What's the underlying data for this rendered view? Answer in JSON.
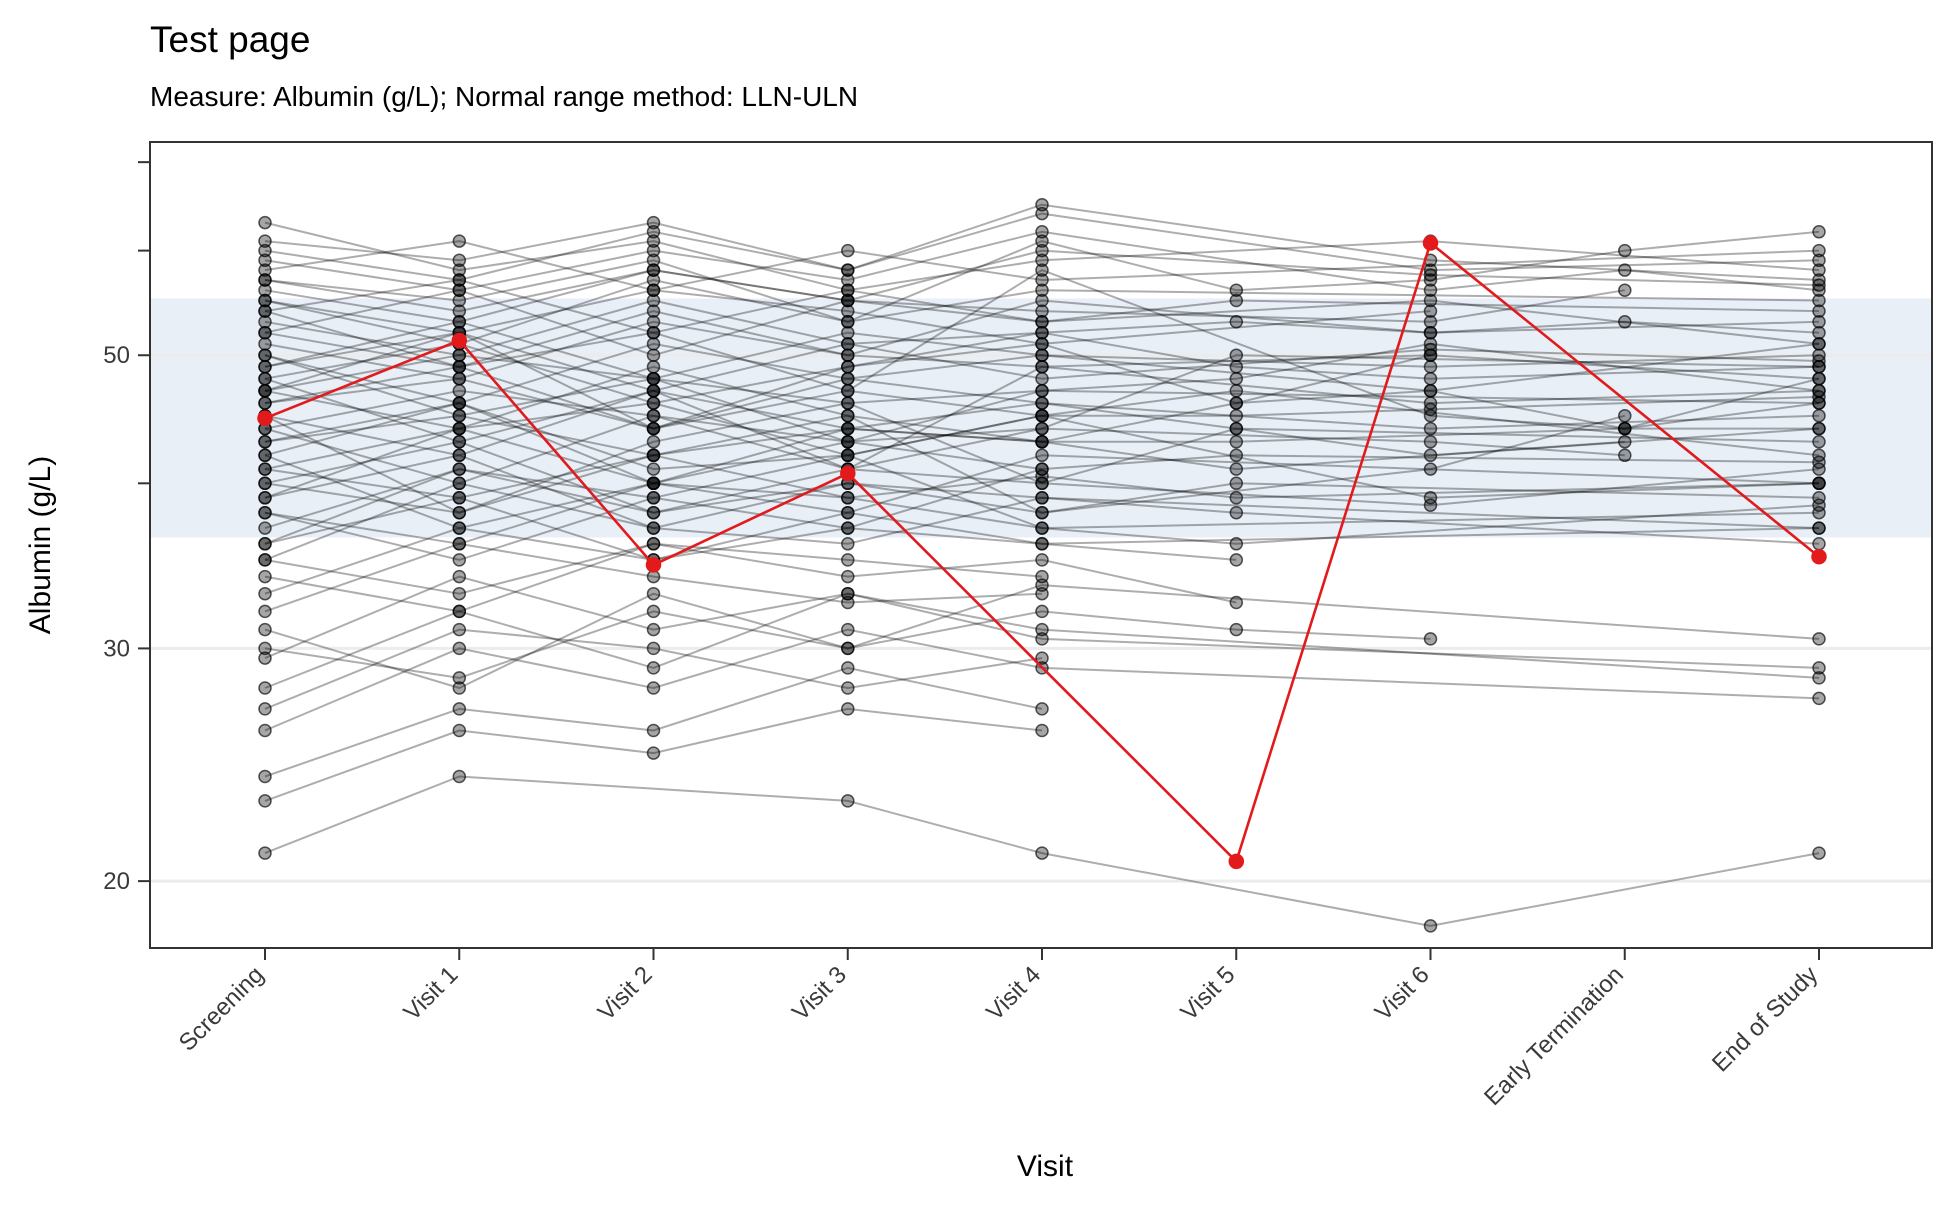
{
  "chart_data": {
    "type": "line",
    "title": "Test page",
    "subtitle": "Measure: Albumin (g/L); Normal range method: LLN-ULN",
    "xlabel": "Visit",
    "ylabel": "Albumin (g/L)",
    "categories": [
      "Screening",
      "Visit 1",
      "Visit 2",
      "Visit 3",
      "Visit 4",
      "Visit 5",
      "Visit 6",
      "Early Termination",
      "End of Study"
    ],
    "y_scale": "log",
    "ylim": [
      17.8,
      72.5
    ],
    "y_ticks": [
      20,
      30,
      50
    ],
    "normal_range": [
      36.4,
      55.2
    ],
    "grid": true,
    "colors": {
      "normal_range_band": "#e8eff7",
      "gridline": "#ececec",
      "participant_lines": "#000000",
      "highlight": "#e31a1c"
    },
    "highlighted_participant": {
      "values": [
        44.8,
        51.3,
        34.7,
        40.7,
        null,
        20.7,
        60.8,
        null,
        35.2
      ]
    },
    "participants": [
      {
        "values": [
          50.0,
          45.0,
          48.0,
          43.0,
          47.0,
          null,
          null,
          null,
          46.0
        ]
      },
      {
        "values": [
          47.0,
          52.0,
          44.0,
          49.0,
          51.0,
          46.0,
          50.0,
          null,
          null
        ]
      },
      {
        "values": [
          54.0,
          49.0,
          52.0,
          47.0,
          58.0,
          null,
          45.0,
          44.0,
          48.0
        ]
      },
      {
        "values": [
          42.0,
          46.0,
          40.0,
          44.0,
          43.0,
          41.0,
          null,
          null,
          44.0
        ]
      },
      {
        "values": [
          39.0,
          44.0,
          46.0,
          42.0,
          45.0,
          null,
          39.0,
          null,
          40.0
        ]
      },
      {
        "values": [
          57.0,
          55.0,
          59.0,
          53.0,
          61.0,
          56.0,
          57.0,
          60.0,
          62.0
        ]
      },
      {
        "values": [
          36.0,
          41.0,
          38.0,
          40.0,
          39.0,
          null,
          null,
          null,
          37.0
        ]
      },
      {
        "values": [
          45.0,
          38.0,
          43.0,
          46.0,
          40.0,
          44.0,
          42.0,
          43.0,
          null
        ]
      },
      {
        "values": [
          52.0,
          56.0,
          50.0,
          55.0,
          53.0,
          null,
          55.0,
          null,
          51.0
        ]
      },
      {
        "values": [
          33.0,
          37.0,
          35.0,
          38.0,
          36.0,
          35.0,
          null,
          null,
          null
        ]
      },
      {
        "values": [
          48.0,
          43.0,
          47.0,
          41.0,
          49.0,
          null,
          46.0,
          null,
          47.0
        ]
      },
      {
        "values": [
          29.5,
          34.0,
          31.0,
          33.0,
          30.5,
          null,
          null,
          null,
          29.0
        ]
      },
      {
        "values": [
          60.0,
          57.0,
          62.0,
          58.0,
          64.0,
          null,
          58.0,
          null,
          59.0
        ]
      },
      {
        "values": [
          44.0,
          47.0,
          45.0,
          43.0,
          44.0,
          50.0,
          null,
          null,
          49.0
        ]
      },
      {
        "values": [
          41.0,
          39.0,
          42.0,
          45.0,
          38.0,
          null,
          41.0,
          45.0,
          null
        ]
      },
      {
        "values": [
          35.0,
          40.0,
          37.0,
          36.0,
          39.0,
          38.0,
          null,
          null,
          36.0
        ]
      },
      {
        "values": [
          26.0,
          30.0,
          28.0,
          31.0,
          29.0,
          null,
          null,
          null,
          27.5
        ]
      },
      {
        "values": [
          53.0,
          50.0,
          55.0,
          51.0,
          52.0,
          53.0,
          52.0,
          53.0,
          52.0
        ]
      },
      {
        "values": [
          46.0,
          49.0,
          44.0,
          48.0,
          46.0,
          null,
          44.0,
          null,
          45.0
        ]
      },
      {
        "values": [
          38.0,
          35.0,
          39.0,
          37.0,
          41.0,
          null,
          null,
          null,
          null
        ]
      },
      {
        "values": [
          63.0,
          58.0,
          61.0,
          56.0,
          59.0,
          null,
          61.0,
          null,
          58.0
        ]
      },
      {
        "values": [
          31.0,
          28.0,
          33.0,
          30.0,
          32.0,
          31.0,
          30.5,
          null,
          null
        ]
      },
      {
        "values": [
          49.0,
          53.0,
          48.0,
          52.0,
          50.0,
          null,
          49.0,
          null,
          50.0
        ]
      },
      {
        "values": [
          43.0,
          46.0,
          41.0,
          42.0,
          45.0,
          47.0,
          null,
          null,
          42.0
        ]
      },
      {
        "values": [
          55.0,
          51.0,
          57.0,
          53.0,
          56.0,
          null,
          null,
          null,
          55.0
        ]
      },
      {
        "values": [
          24.0,
          27.0,
          26.0,
          29.0,
          27.0,
          null,
          null,
          null,
          null
        ]
      },
      {
        "values": [
          47.0,
          44.0,
          49.0,
          45.0,
          43.0,
          46.0,
          47.0,
          44.0,
          46.0
        ]
      },
      {
        "values": [
          40.0,
          43.0,
          38.0,
          41.0,
          40.0,
          null,
          38.5,
          null,
          41.0
        ]
      },
      {
        "values": [
          58.0,
          61.0,
          56.0,
          60.0,
          57.0,
          null,
          null,
          null,
          60.0
        ]
      },
      {
        "values": [
          34.0,
          32.0,
          36.0,
          34.0,
          35.0,
          32.5,
          null,
          null,
          null
        ]
      },
      {
        "values": [
          51.0,
          48.0,
          53.0,
          50.0,
          49.0,
          null,
          50.0,
          null,
          48.0
        ]
      },
      {
        "values": [
          37.0,
          41.0,
          39.0,
          42.0,
          37.0,
          null,
          null,
          null,
          38.0
        ]
      },
      {
        "values": [
          21.0,
          24.0,
          null,
          23.0,
          21.0,
          null,
          18.5,
          null,
          21.0
        ]
      },
      {
        "values": [
          45.0,
          42.0,
          47.0,
          44.0,
          46.0,
          44.0,
          null,
          null,
          43.0
        ]
      },
      {
        "values": [
          56.0,
          53.0,
          58.0,
          55.0,
          54.0,
          null,
          53.0,
          56.0,
          null
        ]
      },
      {
        "values": [
          42.0,
          37.0,
          40.0,
          38.0,
          42.0,
          null,
          null,
          null,
          40.0
        ]
      },
      {
        "values": [
          48.0,
          51.0,
          46.0,
          49.0,
          52.0,
          49.0,
          48.0,
          null,
          49.0
        ]
      },
      {
        "values": [
          32.0,
          36.0,
          34.0,
          32.5,
          33.0,
          null,
          null,
          null,
          null
        ]
      },
      {
        "values": [
          61.0,
          59.0,
          63.0,
          58.0,
          65.0,
          null,
          59.0,
          null,
          57.0
        ]
      },
      {
        "values": [
          39.0,
          42.0,
          37.0,
          40.0,
          38.0,
          40.0,
          null,
          null,
          39.0
        ]
      },
      {
        "values": [
          50.0,
          46.0,
          51.0,
          48.0,
          50.0,
          null,
          47.0,
          null,
          51.0
        ]
      },
      {
        "values": [
          28.0,
          32.0,
          29.0,
          33.0,
          31.0,
          null,
          null,
          null,
          28.5
        ]
      },
      {
        "values": [
          54.0,
          57.0,
          52.0,
          56.0,
          53.0,
          55.0,
          null,
          null,
          54.0
        ]
      },
      {
        "values": [
          44.0,
          40.0,
          45.0,
          41.0,
          44.0,
          null,
          43.0,
          42.0,
          null
        ]
      },
      {
        "values": [
          36.0,
          39.0,
          35.0,
          37.0,
          36.0,
          null,
          null,
          null,
          37.0
        ]
      },
      {
        "values": [
          47.0,
          50.0,
          48.0,
          46.0,
          47.0,
          48.0,
          51.0,
          null,
          47.0
        ]
      },
      {
        "values": [
          23.0,
          26.0,
          25.0,
          27.0,
          26.0,
          null,
          null,
          null,
          null
        ]
      },
      {
        "values": [
          52.0,
          49.0,
          54.0,
          50.0,
          55.0,
          null,
          52.0,
          null,
          53.0
        ]
      },
      {
        "values": [
          41.0,
          44.0,
          40.0,
          43.0,
          41.0,
          42.0,
          null,
          null,
          41.5
        ]
      },
      {
        "values": [
          59.0,
          56.0,
          60.0,
          57.0,
          62.0,
          null,
          56.0,
          58.0,
          56.0
        ]
      },
      {
        "values": [
          35.0,
          33.0,
          36.0,
          35.0,
          34.0,
          null,
          null,
          null,
          null
        ]
      },
      {
        "values": [
          46.0,
          48.0,
          44.0,
          47.0,
          45.0,
          45.0,
          45.5,
          null,
          46.5
        ]
      },
      {
        "values": [
          30.0,
          28.5,
          32.0,
          30.0,
          33.5,
          null,
          null,
          null,
          30.5
        ]
      },
      {
        "values": [
          55.0,
          52.0,
          56.0,
          54.0,
          51.0,
          null,
          54.0,
          null,
          null
        ]
      },
      {
        "values": [
          38.0,
          36.0,
          40.0,
          39.0,
          37.0,
          36.0,
          null,
          null,
          38.5
        ]
      },
      {
        "values": [
          49.0,
          52.0,
          47.0,
          51.0,
          48.0,
          null,
          50.5,
          null,
          49.5
        ]
      },
      {
        "values": [
          43.0,
          45.0,
          42.0,
          44.0,
          43.0,
          43.0,
          null,
          44.0,
          44.0
        ]
      },
      {
        "values": [
          27.0,
          31.0,
          30.0,
          28.0,
          29.5,
          null,
          null,
          null,
          null
        ]
      },
      {
        "values": [
          57.0,
          54.0,
          58.0,
          55.0,
          60.0,
          null,
          57.5,
          null,
          56.5
        ]
      },
      {
        "values": [
          40.0,
          38.0,
          42.0,
          39.0,
          40.5,
          39.0,
          null,
          null,
          40.0
        ]
      }
    ]
  }
}
